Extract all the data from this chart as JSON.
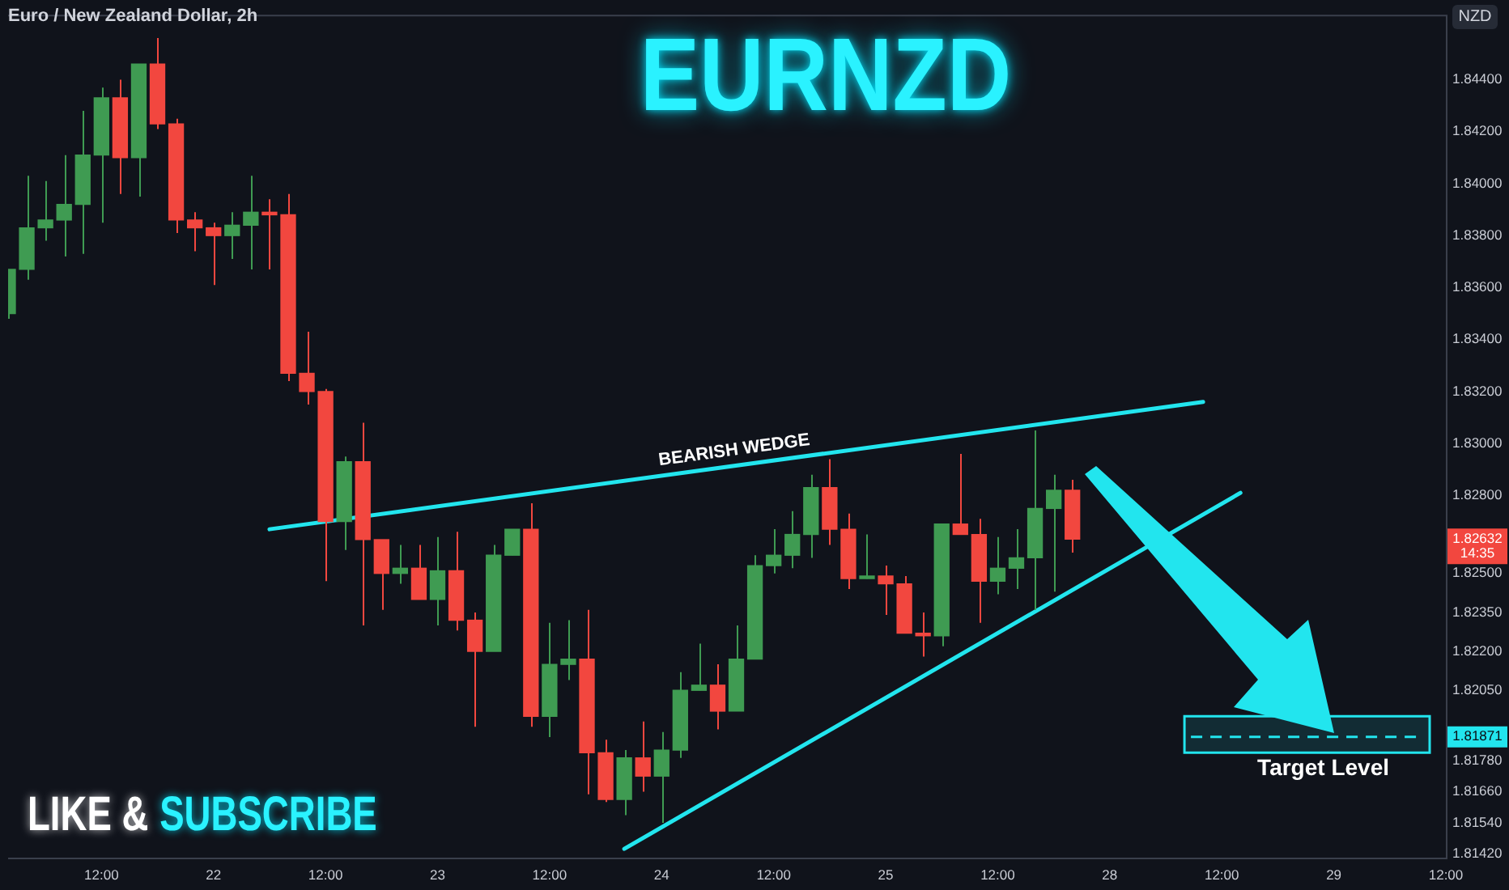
{
  "chart_data": {
    "type": "candlestick",
    "title": "EURNZD",
    "subtitle": "Euro / New Zealand Dollar, 2h",
    "ylabel": "NZD",
    "categories": [
      null,
      null,
      null,
      null,
      null,
      "12:00",
      null,
      null,
      null,
      null,
      null,
      "22",
      null,
      null,
      null,
      null,
      null,
      "12:00",
      null,
      null,
      null,
      null,
      null,
      "23",
      null,
      null,
      null,
      null,
      null,
      "12:00",
      null,
      null,
      null,
      null,
      null,
      "24",
      null,
      null,
      null,
      null,
      null,
      "12:00",
      null,
      null,
      null,
      null,
      null,
      "25",
      null,
      null,
      null,
      null,
      null,
      "12:00",
      null,
      null,
      null,
      null,
      null,
      "28",
      null,
      null,
      null,
      null,
      null,
      "12:00",
      null,
      null,
      null,
      null,
      null,
      "29",
      null,
      null,
      null,
      null,
      null,
      "12:00"
    ],
    "ohlc": [
      [
        1.835,
        1.8367,
        1.8348,
        1.8367
      ],
      [
        1.8367,
        1.8403,
        1.8363,
        1.8383
      ],
      [
        1.8383,
        1.8401,
        1.8378,
        1.8386
      ],
      [
        1.8386,
        1.8411,
        1.8372,
        1.8392
      ],
      [
        1.8392,
        1.8428,
        1.8373,
        1.8411
      ],
      [
        1.8411,
        1.8437,
        1.8385,
        1.8433
      ],
      [
        1.8433,
        1.844,
        1.8396,
        1.841
      ],
      [
        1.841,
        1.8446,
        1.8395,
        1.8446
      ],
      [
        1.8446,
        1.8456,
        1.8421,
        1.8423
      ],
      [
        1.8423,
        1.8425,
        1.8381,
        1.8386
      ],
      [
        1.8386,
        1.8389,
        1.8374,
        1.8383
      ],
      [
        1.8383,
        1.8385,
        1.8361,
        1.838
      ],
      [
        1.838,
        1.8389,
        1.8371,
        1.8384
      ],
      [
        1.8384,
        1.8403,
        1.8367,
        1.8389
      ],
      [
        1.8389,
        1.8394,
        1.8367,
        1.8388
      ],
      [
        1.8388,
        1.8396,
        1.8324,
        1.8327
      ],
      [
        1.8327,
        1.8343,
        1.8315,
        1.832
      ],
      [
        1.832,
        1.8321,
        1.8247,
        1.827
      ],
      [
        1.827,
        1.8295,
        1.8259,
        1.8293
      ],
      [
        1.8293,
        1.8308,
        1.823,
        1.8263
      ],
      [
        1.8263,
        1.8263,
        1.8236,
        1.825
      ],
      [
        1.825,
        1.8261,
        1.8246,
        1.8252
      ],
      [
        1.8252,
        1.8261,
        1.824,
        1.824
      ],
      [
        1.824,
        1.8264,
        1.823,
        1.8251
      ],
      [
        1.8251,
        1.8266,
        1.8228,
        1.8232
      ],
      [
        1.8232,
        1.8235,
        1.8191,
        1.822
      ],
      [
        1.822,
        1.8261,
        1.822,
        1.8257
      ],
      [
        1.8257,
        1.8267,
        1.8257,
        1.8267
      ],
      [
        1.8267,
        1.8277,
        1.8191,
        1.8195
      ],
      [
        1.8195,
        1.8231,
        1.8187,
        1.8215
      ],
      [
        1.8215,
        1.8232,
        1.8209,
        1.8217
      ],
      [
        1.8217,
        1.8236,
        1.8165,
        1.8181
      ],
      [
        1.8181,
        1.8186,
        1.8162,
        1.8163
      ],
      [
        1.8163,
        1.8182,
        1.8157,
        1.8179
      ],
      [
        1.8179,
        1.8193,
        1.8166,
        1.8172
      ],
      [
        1.8172,
        1.8189,
        1.8154,
        1.8182
      ],
      [
        1.8182,
        1.8212,
        1.8179,
        1.8205
      ],
      [
        1.8205,
        1.8223,
        1.8205,
        1.8207
      ],
      [
        1.8207,
        1.8215,
        1.819,
        1.8197
      ],
      [
        1.8197,
        1.823,
        1.8197,
        1.8217
      ],
      [
        1.8217,
        1.8257,
        1.8217,
        1.8253
      ],
      [
        1.8253,
        1.8267,
        1.825,
        1.8257
      ],
      [
        1.8257,
        1.8274,
        1.8252,
        1.8265
      ],
      [
        1.8265,
        1.8288,
        1.8256,
        1.8283
      ],
      [
        1.8283,
        1.8294,
        1.8261,
        1.8267
      ],
      [
        1.8267,
        1.8273,
        1.8244,
        1.8248
      ],
      [
        1.8248,
        1.8265,
        1.8248,
        1.8249
      ],
      [
        1.8249,
        1.8253,
        1.8234,
        1.8246
      ],
      [
        1.8246,
        1.8249,
        1.8227,
        1.8227
      ],
      [
        1.8227,
        1.8235,
        1.8218,
        1.8226
      ],
      [
        1.8226,
        1.8269,
        1.8222,
        1.8269
      ],
      [
        1.8269,
        1.8296,
        1.8265,
        1.8265
      ],
      [
        1.8265,
        1.8271,
        1.8231,
        1.8247
      ],
      [
        1.8247,
        1.8264,
        1.8242,
        1.8252
      ],
      [
        1.8252,
        1.8267,
        1.8244,
        1.8256
      ],
      [
        1.8256,
        1.8305,
        1.8236,
        1.8275
      ],
      [
        1.8275,
        1.8288,
        1.8243,
        1.8282
      ],
      [
        1.8282,
        1.8286,
        1.8258,
        1.82632
      ],
      null,
      null,
      null,
      null,
      null,
      null,
      null,
      null,
      null,
      null,
      null,
      null,
      null,
      null,
      null,
      null,
      null,
      null,
      null,
      null
    ],
    "colors": [
      "#3f9b52",
      "#3f9b52",
      "#3f9b52",
      "#3f9b52",
      "#3f9b52",
      "#3f9b52",
      "#f2473f",
      "#3f9b52",
      "#f2473f",
      "#f2473f",
      "#f2473f",
      "#f2473f",
      "#3f9b52",
      "#3f9b52",
      "#f2473f",
      "#f2473f",
      "#f2473f",
      "#f2473f",
      "#3f9b52",
      "#f2473f",
      "#f2473f",
      "#3f9b52",
      "#f2473f",
      "#3f9b52",
      "#f2473f",
      "#f2473f",
      "#3f9b52",
      "#3f9b52",
      "#f2473f",
      "#3f9b52",
      "#3f9b52",
      "#f2473f",
      "#f2473f",
      "#3f9b52",
      "#f2473f",
      "#3f9b52",
      "#3f9b52",
      "#3f9b52",
      "#f2473f",
      "#3f9b52",
      "#3f9b52",
      "#3f9b52",
      "#3f9b52",
      "#3f9b52",
      "#f2473f",
      "#f2473f",
      "#3f9b52",
      "#f2473f",
      "#f2473f",
      "#f2473f",
      "#3f9b52",
      "#f2473f",
      "#f2473f",
      "#3f9b52",
      "#3f9b52",
      "#3f9b52",
      "#3f9b52",
      "#f2473f",
      null,
      null,
      null,
      null,
      null,
      null,
      null,
      null,
      null,
      null,
      null,
      null,
      null,
      null,
      null,
      null,
      null,
      null,
      null,
      null
    ],
    "series": [
      {
        "type": "line",
        "name": "BEARISH WEDGE",
        "color": "#22e5ee",
        "values": [
          null,
          null,
          null,
          null,
          null,
          null,
          null,
          null,
          null,
          null,
          null,
          null,
          null,
          null,
          1.8267,
          null,
          null,
          null,
          null,
          null,
          null,
          null,
          null,
          null,
          null,
          null,
          null,
          null,
          null,
          null,
          null,
          null,
          null,
          null,
          null,
          null,
          null,
          null,
          null,
          null,
          null,
          null,
          null,
          null,
          null,
          null,
          null,
          null,
          null,
          null,
          null,
          null,
          null,
          null,
          null,
          null,
          null,
          null,
          null,
          null,
          null,
          null,
          null,
          null,
          1.8316,
          null,
          null,
          null,
          null,
          null,
          null,
          null,
          null,
          null,
          null,
          null,
          null,
          null
        ]
      },
      {
        "type": "line",
        "color": "#22e5ee",
        "values": [
          null,
          null,
          null,
          null,
          null,
          null,
          null,
          null,
          null,
          null,
          null,
          null,
          null,
          null,
          null,
          null,
          null,
          null,
          null,
          null,
          null,
          null,
          null,
          null,
          null,
          null,
          null,
          null,
          null,
          null,
          null,
          null,
          null,
          1.8144,
          null,
          null,
          null,
          null,
          null,
          null,
          null,
          null,
          null,
          null,
          null,
          null,
          null,
          null,
          null,
          null,
          null,
          null,
          null,
          null,
          null,
          null,
          null,
          null,
          null,
          null,
          null,
          null,
          null,
          null,
          null,
          null,
          1.8281,
          null,
          null,
          null,
          null,
          null,
          null,
          null,
          null,
          null,
          null,
          null
        ]
      }
    ],
    "ylim": [
      1.814,
      1.8465
    ],
    "yticks": [
      {
        "value": 1.844,
        "label": "1.84400"
      },
      {
        "value": 1.842,
        "label": "1.84200"
      },
      {
        "value": 1.84,
        "label": "1.84000"
      },
      {
        "value": 1.838,
        "label": "1.83800"
      },
      {
        "value": 1.836,
        "label": "1.83600"
      },
      {
        "value": 1.834,
        "label": "1.83400"
      },
      {
        "value": 1.832,
        "label": "1.83200"
      },
      {
        "value": 1.83,
        "label": "1.83000"
      },
      {
        "value": 1.828,
        "label": "1.82800"
      },
      {
        "value": 1.825,
        "label": "1.82500"
      },
      {
        "value": 1.8235,
        "label": "1.82350"
      },
      {
        "value": 1.822,
        "label": "1.82200"
      },
      {
        "value": 1.8205,
        "label": "1.82050"
      },
      {
        "value": 1.8178,
        "label": "1.81780"
      },
      {
        "value": 1.8166,
        "label": "1.81660"
      },
      {
        "value": 1.8154,
        "label": "1.81540"
      },
      {
        "value": 1.8142,
        "label": "1.81420"
      }
    ],
    "ref_lines": [
      {
        "axis": "y",
        "value": 1.81871,
        "label": "Target Level",
        "color": "#22e5ee",
        "line_style": "dashed"
      }
    ],
    "bands": [
      {
        "axis": "y",
        "from": 1.8181,
        "to": 1.8195,
        "color": "#22e5ee"
      }
    ],
    "annotations": [
      "LIKE &",
      "SUBSCRIBE",
      "1.82632",
      "14:35",
      {
        "text": "1.81871",
        "y": 1.81871
      }
    ]
  }
}
